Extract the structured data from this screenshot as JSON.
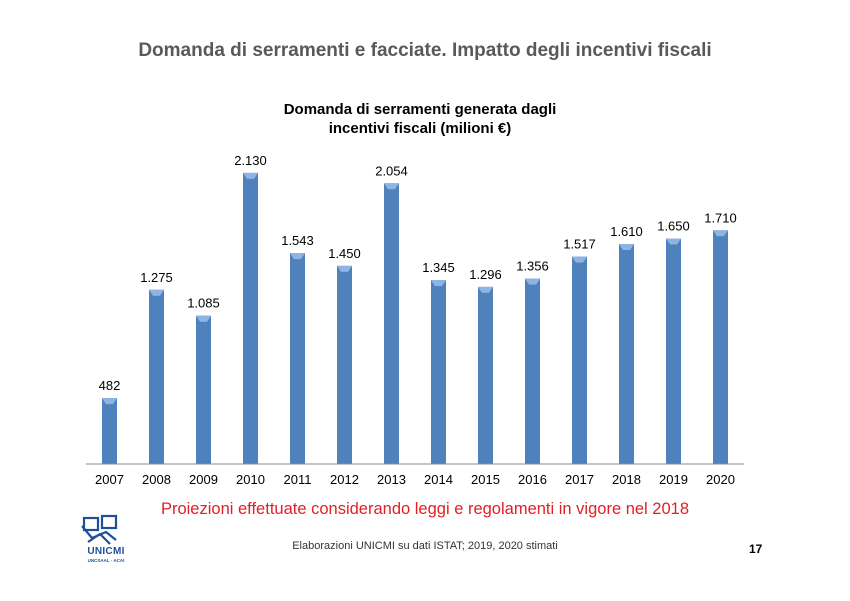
{
  "slide": {
    "title": "Domanda di serramenti e facciate. Impatto degli incentivi fiscali",
    "chart_title_line1": "Domanda di serramenti generata dagli",
    "chart_title_line2": "incentivi fiscali (milioni €)",
    "note": "Proiezioni effettuate considerando leggi e regolamenti in vigore nel 2018",
    "source": "Elaborazioni UNICMI su dati ISTAT; 2019, 2020 stimati",
    "page_number": "17",
    "logo": {
      "name": "UNICMI",
      "subtitle": "UNCSAAL · ACAI"
    }
  },
  "colors": {
    "bar": "#4f81bd",
    "bar_top": "#8fb4e3",
    "note": "#e31e24",
    "title": "#595959",
    "logo": "#1f4e9a"
  },
  "chart_data": {
    "type": "bar",
    "title": "Domanda di serramenti generata dagli incentivi fiscali (milioni €)",
    "categories": [
      "2007",
      "2008",
      "2009",
      "2010",
      "2011",
      "2012",
      "2013",
      "2014",
      "2015",
      "2016",
      "2017",
      "2018",
      "2019",
      "2020"
    ],
    "values": [
      482,
      1275,
      1085,
      2130,
      1543,
      1450,
      2054,
      1345,
      1296,
      1356,
      1517,
      1610,
      1650,
      1710
    ],
    "value_labels": [
      "482",
      "1.275",
      "1.085",
      "2.130",
      "1.543",
      "1.450",
      "2.054",
      "1.345",
      "1.296",
      "1.356",
      "1.517",
      "1.610",
      "1.650",
      "1.710"
    ],
    "xlabel": "",
    "ylabel": "",
    "ylim": [
      0,
      2400
    ],
    "grid": false,
    "legend": "none"
  }
}
